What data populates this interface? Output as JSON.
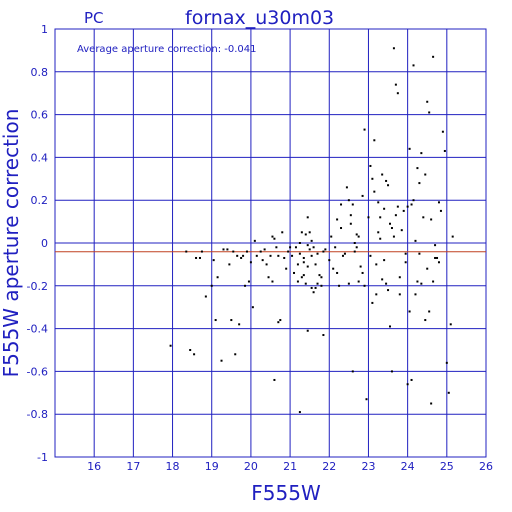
{
  "chart_data": {
    "type": "scatter",
    "corner_label": "PC",
    "title": "fornax_u30m03",
    "xlabel": "F555W",
    "ylabel": "F555W aperture correction",
    "annotation": "Average aperture correction: -0.041",
    "average_line": -0.041,
    "xlim": [
      15,
      26
    ],
    "ylim": [
      -1,
      1
    ],
    "x_ticks": [
      "16",
      "17",
      "18",
      "19",
      "20",
      "21",
      "22",
      "23",
      "24",
      "25",
      "26"
    ],
    "y_ticks": [
      "1",
      "0.8",
      "0.6",
      "0.4",
      "0.2",
      "0",
      "-0.2",
      "-0.4",
      "-0.6",
      "-0.8",
      "-1"
    ],
    "grid": true,
    "colors": {
      "axis": "#2020c0",
      "grid": "#2020c0",
      "points": "#000000",
      "average_line": "#c04020"
    },
    "points": [
      [
        17.95,
        -0.48
      ],
      [
        18.35,
        -0.04
      ],
      [
        18.45,
        -0.5
      ],
      [
        18.55,
        -0.52
      ],
      [
        18.6,
        -0.07
      ],
      [
        18.7,
        -0.07
      ],
      [
        18.75,
        -0.04
      ],
      [
        18.85,
        -0.25
      ],
      [
        19.0,
        -0.2
      ],
      [
        19.05,
        -0.08
      ],
      [
        19.15,
        -0.16
      ],
      [
        19.1,
        -0.36
      ],
      [
        19.25,
        -0.55
      ],
      [
        19.3,
        -0.03
      ],
      [
        19.4,
        -0.03
      ],
      [
        19.45,
        -0.1
      ],
      [
        19.5,
        -0.36
      ],
      [
        19.55,
        -0.04
      ],
      [
        19.6,
        -0.52
      ],
      [
        19.65,
        -0.06
      ],
      [
        19.7,
        -0.38
      ],
      [
        19.75,
        -0.07
      ],
      [
        19.8,
        -0.06
      ],
      [
        19.85,
        -0.2
      ],
      [
        19.9,
        -0.04
      ],
      [
        19.95,
        -0.18
      ],
      [
        20.0,
        -0.09
      ],
      [
        20.05,
        -0.3
      ],
      [
        20.1,
        0.01
      ],
      [
        20.15,
        -0.06
      ],
      [
        20.25,
        -0.04
      ],
      [
        20.3,
        -0.08
      ],
      [
        20.35,
        -0.03
      ],
      [
        20.4,
        -0.1
      ],
      [
        20.45,
        -0.16
      ],
      [
        20.5,
        -0.06
      ],
      [
        20.55,
        -0.18
      ],
      [
        20.6,
        0.02
      ],
      [
        20.65,
        -0.02
      ],
      [
        20.7,
        -0.37
      ],
      [
        20.75,
        -0.36
      ],
      [
        20.8,
        0.05
      ],
      [
        20.85,
        -0.07
      ],
      [
        20.9,
        -0.12
      ],
      [
        20.95,
        -0.04
      ],
      [
        20.6,
        -0.64
      ],
      [
        20.7,
        -0.06
      ],
      [
        20.55,
        0.03
      ],
      [
        21.0,
        -0.02
      ],
      [
        21.05,
        -0.06
      ],
      [
        21.1,
        -0.14
      ],
      [
        21.15,
        -0.02
      ],
      [
        21.2,
        -0.1
      ],
      [
        21.25,
        -0.05
      ],
      [
        21.2,
        -0.18
      ],
      [
        21.25,
        0.0
      ],
      [
        21.3,
        0.05
      ],
      [
        21.35,
        -0.09
      ],
      [
        21.4,
        0.04
      ],
      [
        21.45,
        -0.01
      ],
      [
        21.5,
        -0.03
      ],
      [
        21.55,
        -0.06
      ],
      [
        21.6,
        -0.02
      ],
      [
        21.65,
        -0.1
      ],
      [
        21.35,
        -0.15
      ],
      [
        21.4,
        -0.19
      ],
      [
        21.45,
        -0.11
      ],
      [
        21.55,
        -0.21
      ],
      [
        21.6,
        -0.23
      ],
      [
        21.65,
        -0.21
      ],
      [
        21.7,
        -0.19
      ],
      [
        21.75,
        -0.15
      ],
      [
        21.8,
        -0.16
      ],
      [
        21.85,
        -0.04
      ],
      [
        21.5,
        0.05
      ],
      [
        21.55,
        0.01
      ],
      [
        21.45,
        0.12
      ],
      [
        21.35,
        -0.07
      ],
      [
        21.3,
        -0.16
      ],
      [
        21.25,
        -0.79
      ],
      [
        21.45,
        -0.41
      ],
      [
        21.85,
        -0.43
      ],
      [
        21.7,
        -0.05
      ],
      [
        21.9,
        -0.03
      ],
      [
        21.8,
        -0.2
      ],
      [
        22.0,
        -0.08
      ],
      [
        22.05,
        0.03
      ],
      [
        22.1,
        -0.12
      ],
      [
        22.15,
        -0.02
      ],
      [
        22.2,
        -0.14
      ],
      [
        22.25,
        -0.2
      ],
      [
        22.3,
        0.07
      ],
      [
        22.35,
        -0.06
      ],
      [
        22.4,
        -0.05
      ],
      [
        22.45,
        0.26
      ],
      [
        22.5,
        0.2
      ],
      [
        22.55,
        0.09
      ],
      [
        22.6,
        0.18
      ],
      [
        22.65,
        0.0
      ],
      [
        22.7,
        -0.02
      ],
      [
        22.75,
        0.03
      ],
      [
        22.8,
        -0.11
      ],
      [
        22.85,
        -0.14
      ],
      [
        22.9,
        0.53
      ],
      [
        22.6,
        -0.6
      ],
      [
        22.5,
        -0.19
      ],
      [
        22.55,
        0.13
      ],
      [
        22.65,
        -0.04
      ],
      [
        22.7,
        0.04
      ],
      [
        22.75,
        -0.18
      ],
      [
        22.85,
        0.22
      ],
      [
        22.9,
        -0.2
      ],
      [
        22.95,
        -0.73
      ],
      [
        22.3,
        0.18
      ],
      [
        22.2,
        0.11
      ],
      [
        23.0,
        0.12
      ],
      [
        23.05,
        -0.06
      ],
      [
        23.1,
        0.3
      ],
      [
        23.15,
        0.24
      ],
      [
        23.2,
        -0.1
      ],
      [
        23.25,
        0.19
      ],
      [
        23.3,
        0.02
      ],
      [
        23.35,
        -0.17
      ],
      [
        23.4,
        0.16
      ],
      [
        23.45,
        0.29
      ],
      [
        23.5,
        0.27
      ],
      [
        23.55,
        0.09
      ],
      [
        23.6,
        0.07
      ],
      [
        23.65,
        0.91
      ],
      [
        23.7,
        0.74
      ],
      [
        23.75,
        0.7
      ],
      [
        23.8,
        -0.16
      ],
      [
        23.85,
        0.06
      ],
      [
        23.9,
        0.15
      ],
      [
        23.95,
        -0.05
      ],
      [
        23.5,
        -0.22
      ],
      [
        23.55,
        -0.39
      ],
      [
        23.6,
        -0.6
      ],
      [
        23.65,
        0.03
      ],
      [
        23.7,
        0.13
      ],
      [
        23.3,
        0.12
      ],
      [
        23.25,
        0.05
      ],
      [
        23.1,
        -0.28
      ],
      [
        23.05,
        0.36
      ],
      [
        23.15,
        0.48
      ],
      [
        23.2,
        -0.24
      ],
      [
        23.35,
        0.32
      ],
      [
        23.4,
        -0.08
      ],
      [
        23.45,
        -0.19
      ],
      [
        23.75,
        0.17
      ],
      [
        23.8,
        -0.24
      ],
      [
        23.95,
        -0.09
      ],
      [
        24.0,
        0.17
      ],
      [
        24.05,
        -0.32
      ],
      [
        24.1,
        0.18
      ],
      [
        24.15,
        0.83
      ],
      [
        24.2,
        -0.24
      ],
      [
        24.25,
        -0.18
      ],
      [
        24.3,
        -0.05
      ],
      [
        24.35,
        0.42
      ],
      [
        24.4,
        0.12
      ],
      [
        24.45,
        0.32
      ],
      [
        24.5,
        0.66
      ],
      [
        24.55,
        0.61
      ],
      [
        24.6,
        0.11
      ],
      [
        24.65,
        0.87
      ],
      [
        24.7,
        -0.01
      ],
      [
        24.75,
        -0.07
      ],
      [
        24.8,
        0.19
      ],
      [
        24.85,
        0.15
      ],
      [
        24.9,
        0.52
      ],
      [
        24.95,
        0.43
      ],
      [
        25.0,
        -0.56
      ],
      [
        25.05,
        -0.7
      ],
      [
        25.1,
        -0.38
      ],
      [
        25.15,
        0.03
      ],
      [
        24.0,
        -0.66
      ],
      [
        24.05,
        0.44
      ],
      [
        24.1,
        -0.64
      ],
      [
        24.15,
        0.2
      ],
      [
        24.35,
        -0.19
      ],
      [
        24.45,
        -0.36
      ],
      [
        24.55,
        -0.32
      ],
      [
        24.6,
        -0.75
      ],
      [
        24.65,
        -0.18
      ],
      [
        24.7,
        -0.07
      ],
      [
        24.2,
        0.01
      ],
      [
        24.25,
        0.35
      ],
      [
        24.3,
        0.28
      ],
      [
        24.5,
        -0.12
      ],
      [
        24.8,
        -0.09
      ]
    ]
  }
}
